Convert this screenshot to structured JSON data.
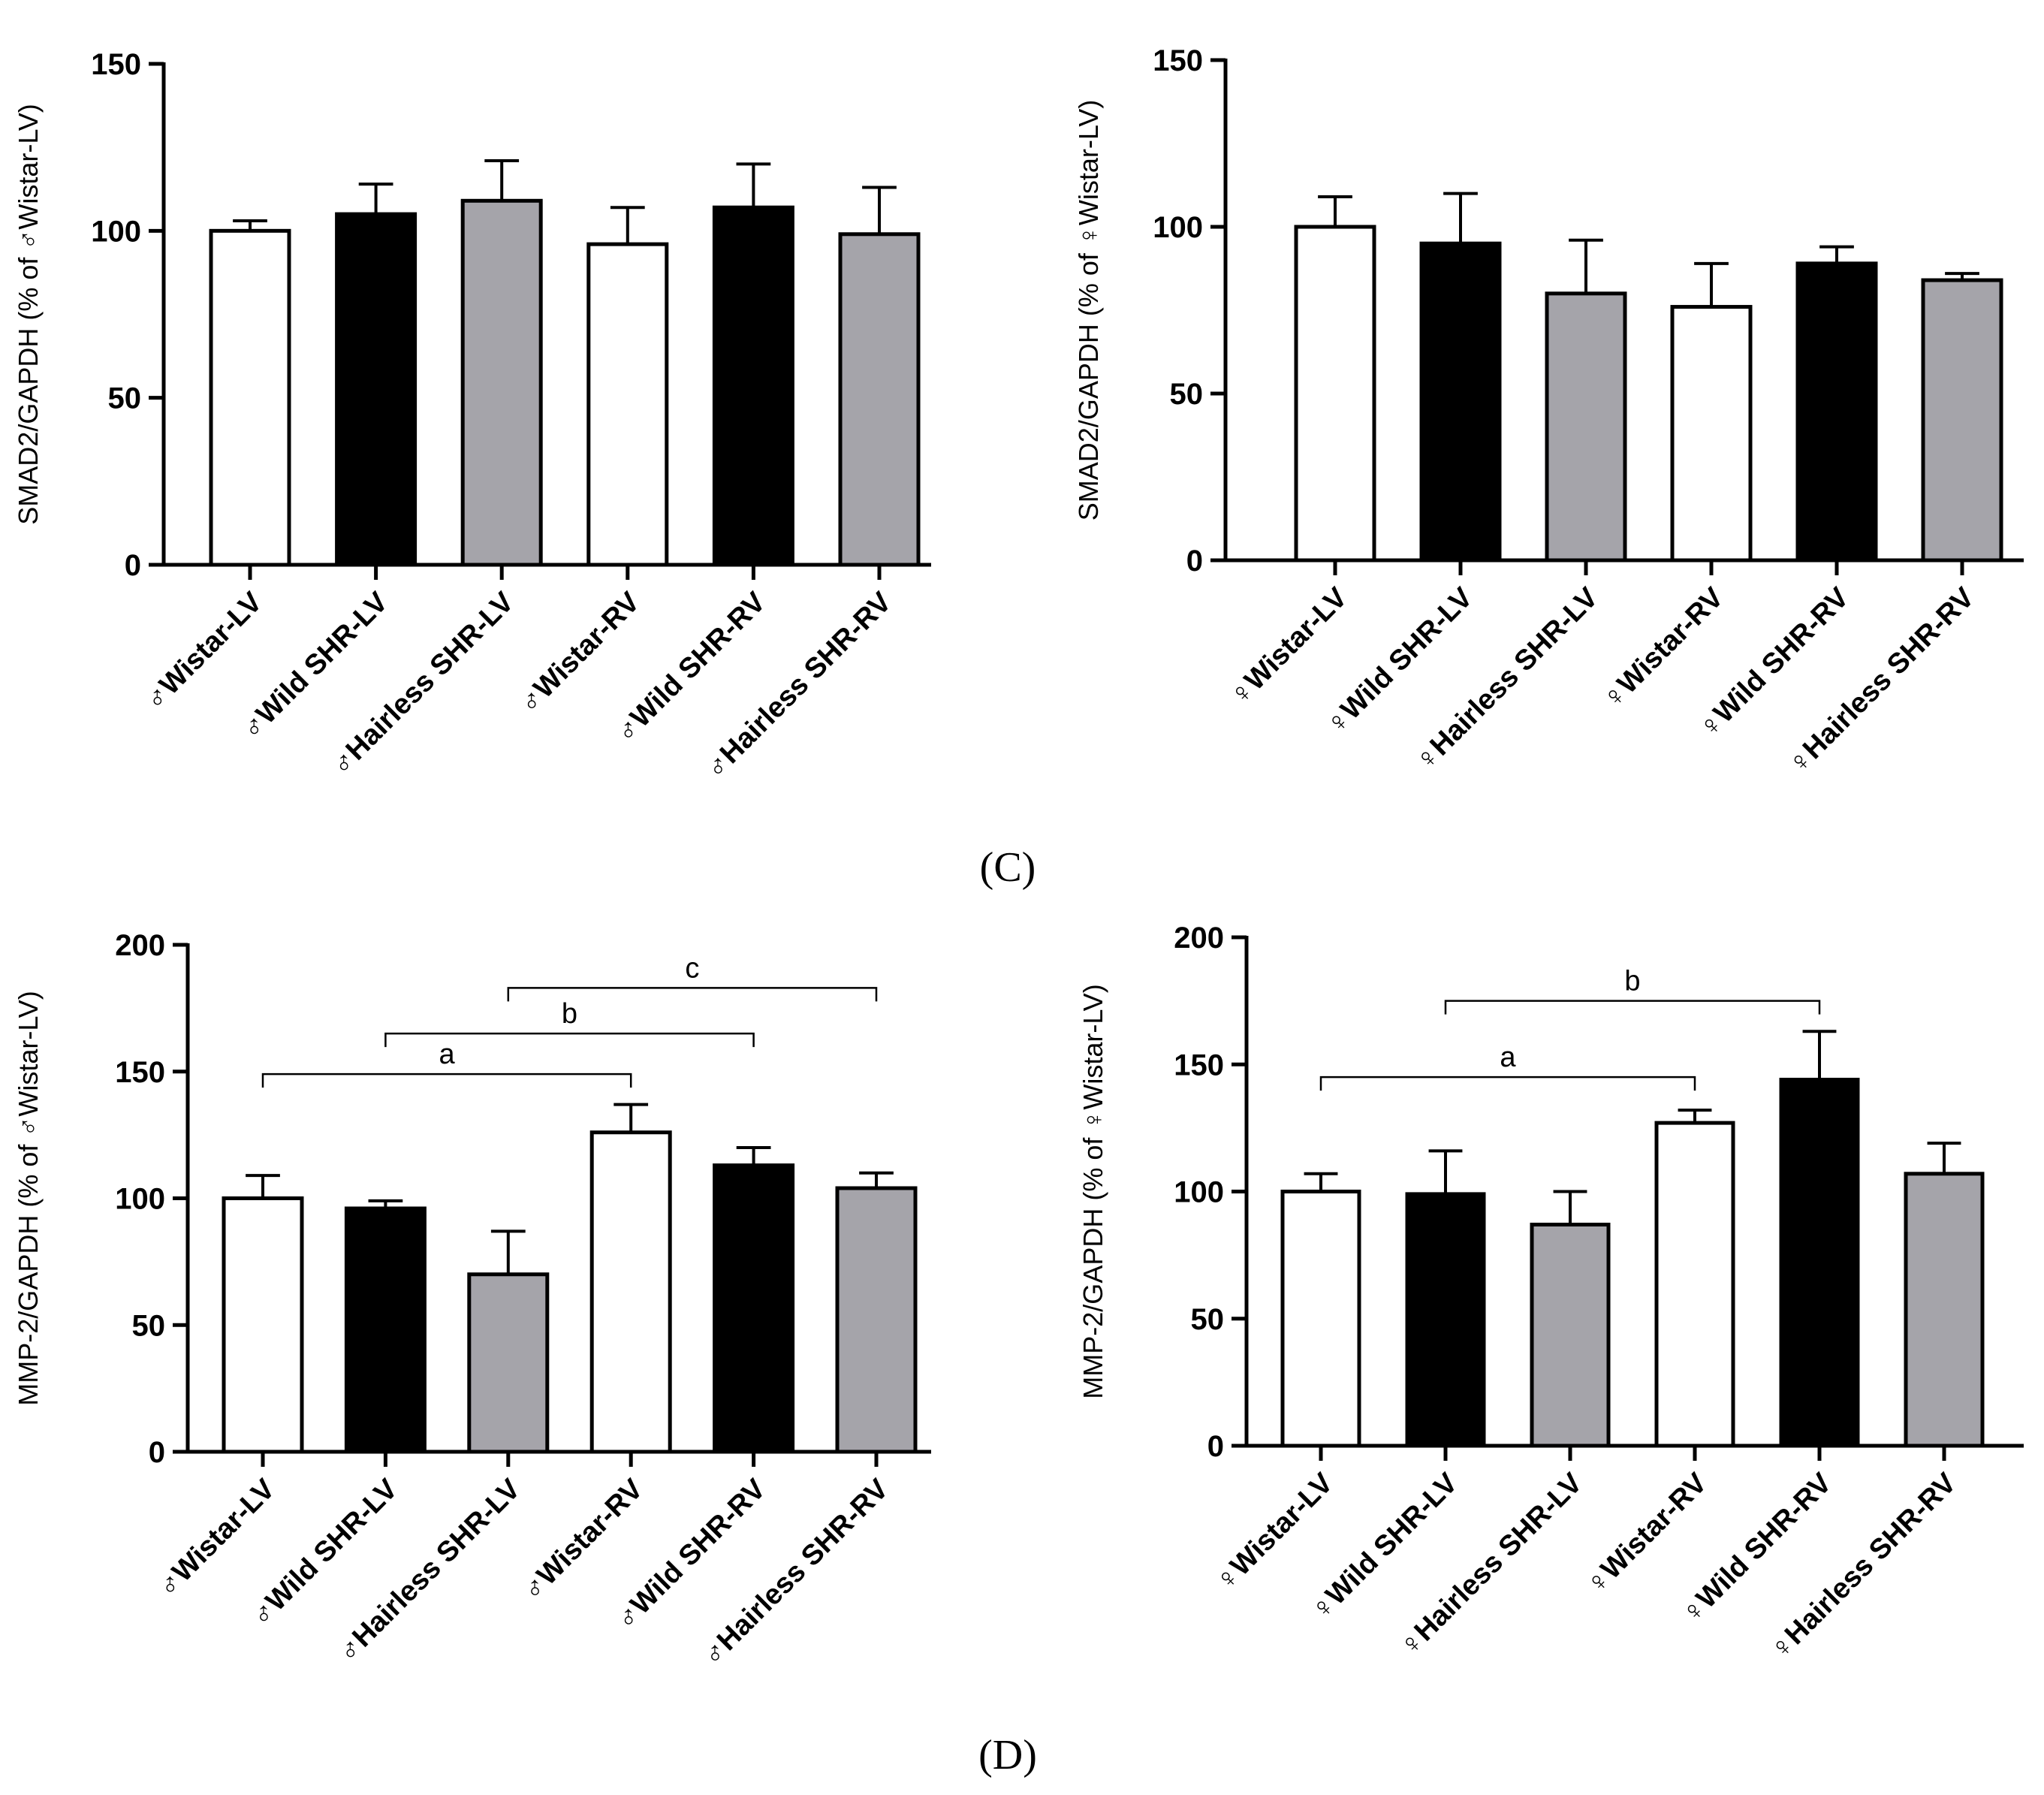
{
  "figure_labels": [
    "(C)",
    "(D)"
  ],
  "colors": {
    "white": "#ffffff",
    "black": "#000000",
    "gray": "#a5a4aa"
  },
  "chart_data": [
    {
      "type": "bar",
      "panel": "top-left",
      "title": "",
      "xlabel": "",
      "ylabel": "SMAD2/GAPDH (% of ♂Wistar-LV)",
      "ylim": [
        0,
        150
      ],
      "yticks": [
        "0",
        "50",
        "100",
        "150"
      ],
      "categories": [
        "♂Wistar-LV",
        "♂Wild SHR-LV",
        "♂Hairless SHR-LV",
        "♂Wistar-RV",
        "♂Wild SHR-RV",
        "♂Hairless SHR-RV"
      ],
      "values": [
        100,
        105,
        109,
        96,
        107,
        99
      ],
      "errors": [
        3,
        9,
        12,
        11,
        13,
        14
      ],
      "fills": [
        "white",
        "black",
        "gray",
        "white",
        "black",
        "gray"
      ],
      "significance": []
    },
    {
      "type": "bar",
      "panel": "top-right",
      "title": "",
      "xlabel": "",
      "ylabel": "SMAD2/GAPDH (% of ♀Wistar-LV)",
      "ylim": [
        0,
        150
      ],
      "yticks": [
        "0",
        "50",
        "100",
        "150"
      ],
      "categories": [
        "♀Wistar-LV",
        "♀Wild SHR-LV",
        "♀Hairless SHR-LV",
        "♀Wistar-RV",
        "♀Wild SHR-RV",
        "♀Hairless SHR-RV"
      ],
      "values": [
        100,
        95,
        80,
        76,
        89,
        84
      ],
      "errors": [
        9,
        15,
        16,
        13,
        5,
        2
      ],
      "fills": [
        "white",
        "black",
        "gray",
        "white",
        "black",
        "gray"
      ],
      "significance": []
    },
    {
      "type": "bar",
      "panel": "bottom-left",
      "title": "",
      "xlabel": "",
      "ylabel": "MMP-2/GAPDH (% of ♂Wistar-LV)",
      "ylim": [
        0,
        200
      ],
      "yticks": [
        "0",
        "50",
        "100",
        "150",
        "200"
      ],
      "categories": [
        "♂Wistar-LV",
        "♂Wild SHR-LV",
        "♂Hairless SHR-LV",
        "♂Wistar-RV",
        "♂Wild SHR-RV",
        "♂Hairless SHR-RV"
      ],
      "values": [
        100,
        96,
        70,
        126,
        113,
        104
      ],
      "errors": [
        9,
        3,
        17,
        11,
        7,
        6
      ],
      "fills": [
        "white",
        "black",
        "gray",
        "white",
        "black",
        "gray"
      ],
      "significance": [
        {
          "label": "a",
          "from": 0,
          "to": 3,
          "level": 149
        },
        {
          "label": "b",
          "from": 1,
          "to": 4,
          "level": 165
        },
        {
          "label": "c",
          "from": 2,
          "to": 5,
          "level": 183
        }
      ]
    },
    {
      "type": "bar",
      "panel": "bottom-right",
      "title": "",
      "xlabel": "",
      "ylabel": "MMP-2/GAPDH (% of ♀Wistar-LV)",
      "ylim": [
        0,
        200
      ],
      "yticks": [
        "0",
        "50",
        "100",
        "150",
        "200"
      ],
      "categories": [
        "♀Wistar-LV",
        "♀Wild SHR-LV",
        "♀Hairless SHR-LV",
        "♀Wistar-RV",
        "♀Wild SHR-RV",
        "♀Hairless SHR-RV"
      ],
      "values": [
        100,
        99,
        87,
        127,
        144,
        107
      ],
      "errors": [
        7,
        17,
        13,
        5,
        19,
        12
      ],
      "fills": [
        "white",
        "black",
        "gray",
        "white",
        "black",
        "gray"
      ],
      "significance": [
        {
          "label": "a",
          "from": 0,
          "to": 3,
          "level": 145
        },
        {
          "label": "b",
          "from": 1,
          "to": 4,
          "level": 175
        }
      ]
    }
  ]
}
